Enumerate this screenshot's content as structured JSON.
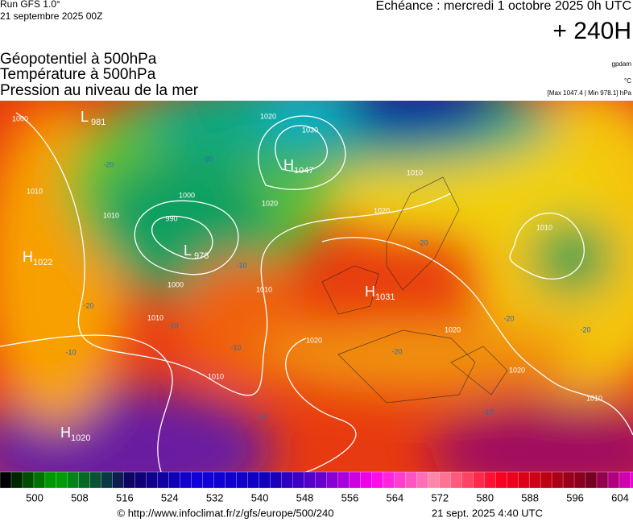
{
  "header": {
    "run": "Run GFS 1.0°",
    "run_date": "21 septembre 2025 00Z",
    "valid": "Echéance : mercredi 1 octobre 2025 0h UTC",
    "lead": "+ 240H",
    "fields": [
      "Géopotentiel à 500hPa",
      "Température à 500hPa",
      "Pression au niveau de la mer"
    ],
    "units": [
      "gpdam",
      "°C",
      "[Max 1047.4 | Min 978.1] hPa"
    ]
  },
  "map": {
    "centers": [
      {
        "symbol": "L",
        "value": "981"
      },
      {
        "symbol": "H",
        "value": "1047"
      },
      {
        "symbol": "L",
        "value": "978"
      },
      {
        "symbol": "H",
        "value": "1022"
      },
      {
        "symbol": "H",
        "value": "1031"
      },
      {
        "symbol": "H",
        "value": "1020"
      }
    ],
    "isobar_labels": [
      "1000",
      "1010",
      "1010",
      "1000",
      "990",
      "1000",
      "1010",
      "1010",
      "1020",
      "1010",
      "1010",
      "1020",
      "1020",
      "1020",
      "1030",
      "1020",
      "1020",
      "1010",
      "1010"
    ],
    "temperature_labels": [
      "-20",
      "-30",
      "-10",
      "-20",
      "-10",
      "-10",
      "-10",
      "-10",
      "-20",
      "-20",
      "-20",
      "-20",
      "-10"
    ]
  },
  "colorbar": {
    "ticks": [
      500,
      508,
      516,
      524,
      532,
      540,
      548,
      556,
      564,
      572,
      580,
      588,
      596,
      604
    ]
  },
  "footer": {
    "source": "© http://www.infoclimat.fr/z/gfs/europe/500/240",
    "generated": "21 sept. 2025  4:40 UTC"
  }
}
